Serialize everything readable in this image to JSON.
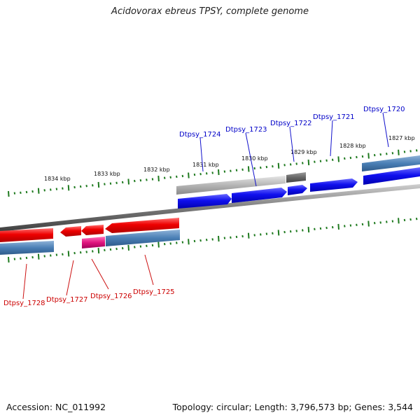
{
  "header": {
    "title": "Acidovorax ebreus TPSY, complete genome"
  },
  "footer": {
    "accession": "Accession: NC_011992",
    "summary": "Topology: circular; Length: 3,796,573 bp; Genes: 3,544"
  },
  "scale": {
    "labels": [
      "1834 kbp",
      "1833 kbp",
      "1832 kbp",
      "1831 kbp",
      "1830 kbp",
      "1829 kbp",
      "1828 kbp",
      "1827 kbp"
    ],
    "tick_color": "#1f7a1f"
  },
  "genes_forward": [
    {
      "name": "Dtpsy_1724",
      "color": "#0a0adf"
    },
    {
      "name": "Dtpsy_1723",
      "color": "#0a0adf"
    },
    {
      "name": "Dtpsy_1722",
      "color": "#0a0adf"
    },
    {
      "name": "Dtpsy_1721",
      "color": "#0a0adf"
    },
    {
      "name": "Dtpsy_1720",
      "color": "#0a0adf"
    }
  ],
  "genes_reverse": [
    {
      "name": "Dtpsy_1728",
      "color": "#d40000"
    },
    {
      "name": "Dtpsy_1727",
      "color": "#d40000"
    },
    {
      "name": "Dtpsy_1726",
      "color": "#d40000"
    },
    {
      "name": "Dtpsy_1725",
      "color": "#d40000"
    }
  ],
  "colors": {
    "forward_cds": "#1010ee",
    "reverse_cds": "#ee0000",
    "pseudo_pink": "#e0157f",
    "feature_steel": "#4a7fb5",
    "feature_gray_light": "#b5b5b5",
    "feature_gray_dark": "#666666",
    "backbone": "#7a7a7a"
  }
}
